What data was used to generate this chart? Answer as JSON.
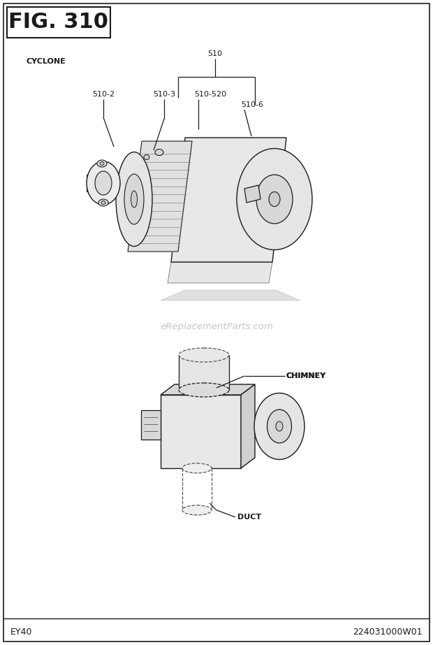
{
  "title": "FIG. 310",
  "label_cyclone": "CYCLONE",
  "label_chimney": "CHIMNEY",
  "label_duct": "DUCT",
  "part_510": "510",
  "part_510_2": "510-2",
  "part_510_3": "510-3",
  "part_510_520": "510-520",
  "part_510_6": "510-6",
  "footer_left": "EY40",
  "footer_right": "224031000W01",
  "watermark": "eReplacementParts.com",
  "bg_color": "#ffffff",
  "line_color": "#1a1a1a",
  "text_color": "#1a1a1a",
  "fig_title_fontsize": 22,
  "label_fontsize": 8.0,
  "part_fontsize": 8.0,
  "footer_fontsize": 9,
  "watermark_fontsize": 9.5
}
